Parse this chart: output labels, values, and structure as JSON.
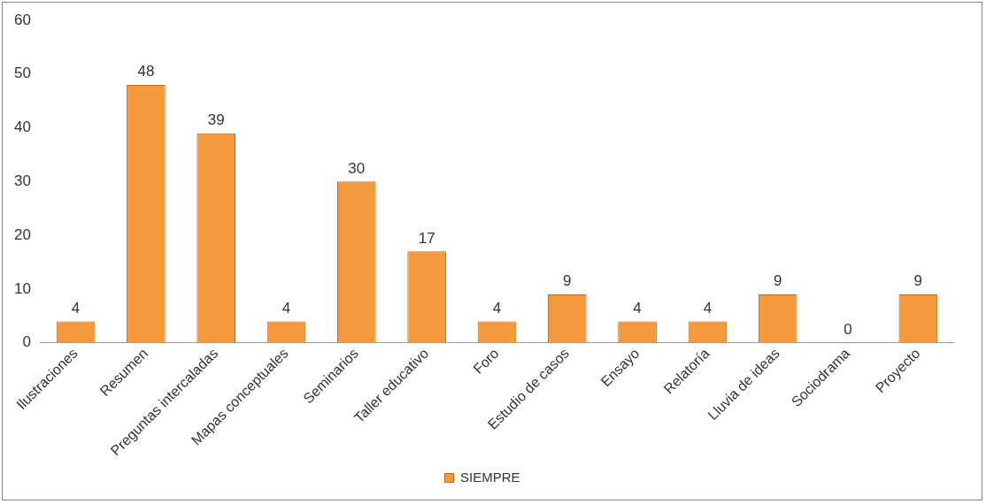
{
  "chart_data": {
    "type": "bar",
    "categories": [
      "Ilustraciones",
      "Resumen",
      "Preguntas intercaladas",
      "Mapas conceptuales",
      "Seminarios",
      "Taller educativo",
      "Foro",
      "Estudio de casos",
      "Ensayo",
      "Relatoría",
      "Lluvia de ideas",
      "Sociodrama",
      "Proyecto"
    ],
    "series": [
      {
        "name": "SIEMPRE",
        "color": "#f59a3c",
        "values": [
          4,
          48,
          39,
          4,
          30,
          17,
          4,
          9,
          4,
          4,
          9,
          0,
          9
        ]
      }
    ],
    "ylim": [
      0,
      60
    ],
    "yticks": [
      0,
      10,
      20,
      30,
      40,
      50,
      60
    ],
    "grid": false,
    "legend": "bottom",
    "data_labels": true
  }
}
